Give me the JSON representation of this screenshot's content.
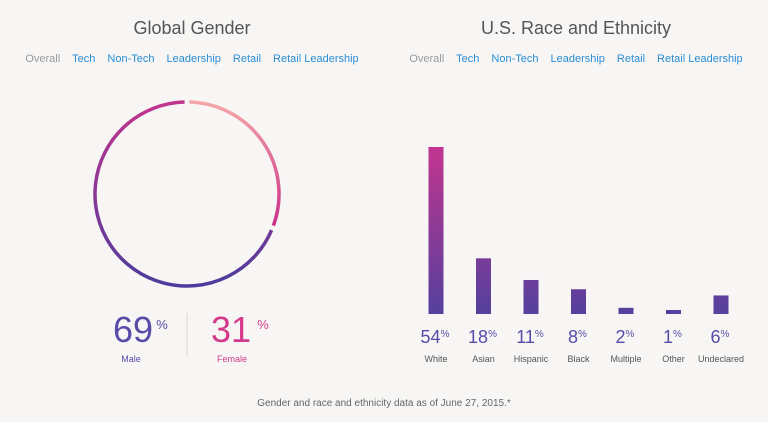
{
  "gender": {
    "title": "Global Gender",
    "tabs": [
      "Overall",
      "Tech",
      "Non-Tech",
      "Leadership",
      "Retail",
      "Retail Leadership"
    ],
    "active_tab": "Overall",
    "chart_data": {
      "type": "pie",
      "title": "Global Gender",
      "slices": [
        {
          "label": "Male",
          "value": 69
        },
        {
          "label": "Female",
          "value": 31
        }
      ],
      "unit": "%"
    },
    "male_value": "69",
    "male_unit": "%",
    "male_label": "Male",
    "female_value": "31",
    "female_unit": "%",
    "female_label": "Female"
  },
  "race": {
    "title": "U.S. Race and Ethnicity",
    "tabs": [
      "Overall",
      "Tech",
      "Non-Tech",
      "Leadership",
      "Retail",
      "Retail Leadership"
    ],
    "active_tab": "Overall",
    "chart_data": {
      "type": "bar",
      "title": "U.S. Race and Ethnicity",
      "categories": [
        "White",
        "Asian",
        "Hispanic",
        "Black",
        "Multiple",
        "Other",
        "Undeclared"
      ],
      "values": [
        54,
        18,
        11,
        8,
        2,
        1,
        6
      ],
      "unit": "%",
      "ylim": [
        0,
        54
      ]
    }
  },
  "colors": {
    "male_top": "#c2358f",
    "male_bottom": "#4e3b9c",
    "female_top": "#f4a7a7",
    "female_bottom": "#cc2e8a",
    "bar_top": "#c2358f",
    "bar_bottom": "#55409d",
    "male_text": "#5b4aa8",
    "female_text": "#d5398b"
  },
  "footnote": "Gender and race and ethnicity data as of June 27, 2015.*"
}
